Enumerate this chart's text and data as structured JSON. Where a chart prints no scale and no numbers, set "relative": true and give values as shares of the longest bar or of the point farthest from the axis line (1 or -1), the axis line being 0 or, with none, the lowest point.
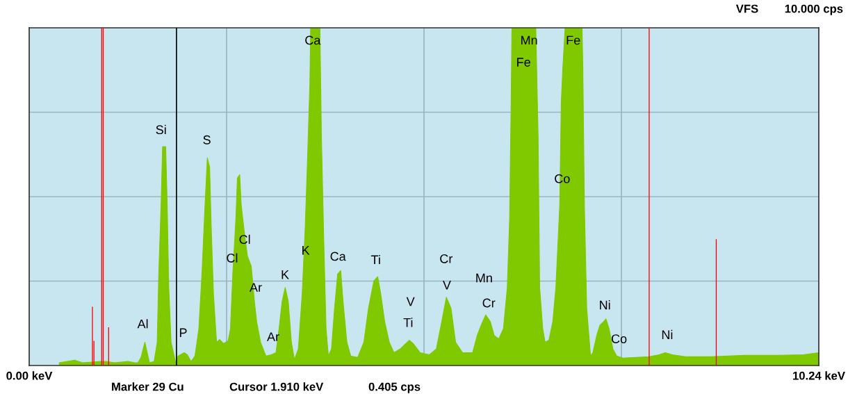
{
  "chart_data": {
    "type": "area",
    "relative": true,
    "xlim": [
      0,
      10.24
    ],
    "xticks": [
      {
        "value": 0,
        "label": "0.00 keV"
      },
      {
        "value": 2.56,
        "label": null
      },
      {
        "value": 5.12,
        "label": null
      },
      {
        "value": 7.68,
        "label": null
      },
      {
        "value": 10.24,
        "label": "10.24 keV"
      }
    ],
    "grid": true,
    "legend": false,
    "series": [
      {
        "color": "#80c800",
        "x": [
          0.39,
          0.59,
          0.69,
          0.82,
          0.93,
          0.99,
          1.11,
          1.28,
          1.37,
          1.41,
          1.45,
          1.5,
          1.56,
          1.62,
          1.66,
          1.68,
          1.71,
          1.73,
          1.77,
          1.79,
          1.81,
          1.84,
          1.9,
          1.93,
          2.01,
          2.05,
          2.1,
          2.15,
          2.2,
          2.24,
          2.28,
          2.31,
          2.34,
          2.36,
          2.39,
          2.43,
          2.47,
          2.52,
          2.58,
          2.61,
          2.64,
          2.68,
          2.7,
          2.73,
          2.75,
          2.79,
          2.83,
          2.88,
          2.92,
          2.95,
          3.0,
          3.07,
          3.14,
          3.2,
          3.24,
          3.28,
          3.32,
          3.36,
          3.4,
          3.44,
          3.49,
          3.54,
          3.58,
          3.61,
          3.64,
          3.65,
          3.77,
          3.79,
          3.82,
          3.85,
          3.88,
          3.92,
          3.96,
          4.0,
          4.04,
          4.07,
          4.12,
          4.17,
          4.26,
          4.34,
          4.4,
          4.47,
          4.52,
          4.56,
          4.61,
          4.67,
          4.73,
          4.81,
          4.93,
          4.98,
          5.07,
          5.19,
          5.28,
          5.35,
          5.41,
          5.47,
          5.53,
          5.62,
          5.75,
          5.81,
          5.86,
          5.92,
          5.98,
          6.03,
          6.09,
          6.15,
          6.2,
          6.23,
          6.25,
          6.26,
          6.57,
          6.6,
          6.62,
          6.66,
          6.69,
          6.74,
          6.79,
          6.83,
          6.88,
          6.9,
          6.92,
          6.95,
          7.17,
          7.18,
          7.2,
          7.23,
          7.28,
          7.31,
          7.36,
          7.4,
          7.45,
          7.48,
          7.52,
          7.57,
          7.62,
          7.7,
          7.87,
          8.04,
          8.17,
          8.25,
          8.34,
          8.51,
          8.85,
          9.27,
          9.7,
          10.04,
          10.24
        ],
        "values": [
          0.008,
          0.016,
          0.008,
          0.01,
          0.012,
          0.012,
          0.008,
          0.012,
          0.008,
          0.008,
          0.024,
          0.069,
          0.008,
          0.012,
          0.069,
          0.271,
          0.474,
          0.648,
          0.648,
          0.474,
          0.231,
          0.069,
          0.008,
          0.028,
          0.038,
          0.032,
          0.012,
          0.028,
          0.109,
          0.271,
          0.474,
          0.615,
          0.587,
          0.415,
          0.211,
          0.069,
          0.077,
          0.065,
          0.073,
          0.109,
          0.271,
          0.433,
          0.555,
          0.565,
          0.474,
          0.395,
          0.324,
          0.294,
          0.192,
          0.13,
          0.069,
          0.028,
          0.032,
          0.038,
          0.109,
          0.19,
          0.231,
          0.19,
          0.069,
          0.018,
          0.049,
          0.211,
          0.413,
          0.615,
          0.838,
          1,
          1,
          0.676,
          0.372,
          0.109,
          0.028,
          0.049,
          0.17,
          0.271,
          0.281,
          0.19,
          0.069,
          0.028,
          0.024,
          0.069,
          0.17,
          0.251,
          0.263,
          0.211,
          0.13,
          0.069,
          0.038,
          0.049,
          0.075,
          0.065,
          0.038,
          0.032,
          0.049,
          0.13,
          0.202,
          0.17,
          0.069,
          0.038,
          0.038,
          0.089,
          0.119,
          0.15,
          0.13,
          0.089,
          0.079,
          0.109,
          0.231,
          0.433,
          0.779,
          1,
          1,
          0.676,
          0.231,
          0.109,
          0.069,
          0.075,
          0.13,
          0.231,
          0.474,
          0.779,
          0.881,
          1,
          1,
          0.881,
          0.474,
          0.17,
          0.028,
          0.038,
          0.089,
          0.119,
          0.13,
          0.138,
          0.109,
          0.049,
          0.028,
          0.022,
          0.024,
          0.026,
          0.032,
          0.038,
          0.032,
          0.026,
          0.026,
          0.03,
          0.03,
          0.032,
          0.038
        ]
      },
      {
        "type": "bar",
        "color": "#ff0000",
        "x": [
          0.82,
          0.84,
          0.94,
          0.96,
          1.03,
          8.04,
          8.91
        ],
        "values": [
          0.174,
          0.073,
          1,
          1,
          0.113,
          1,
          0.374
        ]
      }
    ],
    "ref_lines": [
      {
        "axis": "x",
        "value": 1.91,
        "color": "#000000"
      }
    ],
    "annotations": [
      "VFS",
      "10.000 cps",
      "Marker 29 Cu",
      "Cursor 1.910 keV",
      "0.405 cps",
      "Ca",
      "Mn",
      "Fe",
      "Fe",
      "Si",
      "S",
      "Co",
      "Cl",
      "Cl",
      "Ar",
      "K",
      "K",
      "Ca",
      "Ti",
      "Cr",
      "V",
      "V",
      "Mn",
      "Cr",
      "Ti",
      "Al",
      "P",
      "Ar",
      "Ni",
      "Co",
      "Ni"
    ]
  }
}
